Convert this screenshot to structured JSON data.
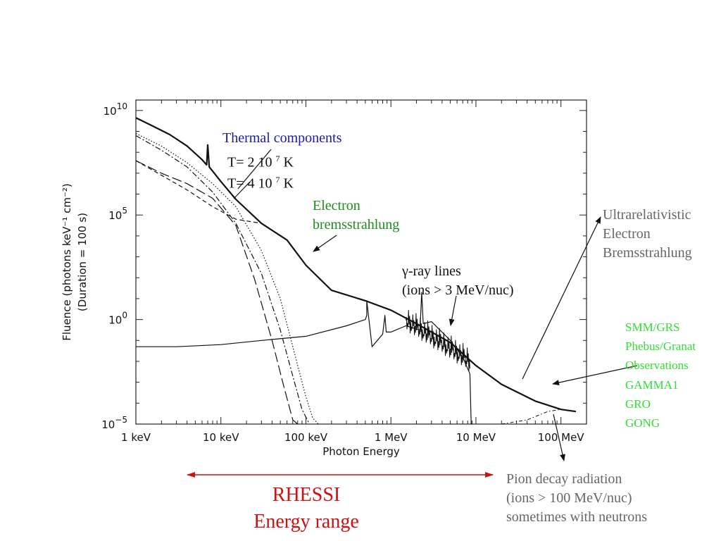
{
  "colors": {
    "thermal_title": "#1a1aa6",
    "electron": "#1f8a1f",
    "gray_text": "#666666",
    "green_obs": "#33dd33",
    "rhessi": "#cc1111",
    "ink": "#111111"
  },
  "chart_data": {
    "type": "line",
    "xlabel": "Photon Energy",
    "ylabel_line1": "Fluence (photons keV⁻¹ cm⁻²)",
    "ylabel_line2": "(Duration = 100 s)",
    "x_scale": "log",
    "y_scale": "log",
    "xlim_keV": [
      1,
      200000
    ],
    "ylim_exp": [
      -5,
      10.5
    ],
    "x_ticks": [
      {
        "value": 1,
        "label": "1 keV"
      },
      {
        "value": 10,
        "label": "10 keV"
      },
      {
        "value": 100,
        "label": "100 keV"
      },
      {
        "value": 1000,
        "label": "1 MeV"
      },
      {
        "value": 10000,
        "label": "10 MeV"
      },
      {
        "value": 100000,
        "label": "100 MeV"
      }
    ],
    "y_ticks": [
      {
        "value": 10,
        "base": "10",
        "exp": "10"
      },
      {
        "value": 5,
        "base": "10",
        "exp": "5"
      },
      {
        "value": 0,
        "base": "10",
        "exp": "0"
      },
      {
        "value": -5,
        "base": "10",
        "exp": "−5"
      }
    ],
    "series": [
      {
        "style": "solid-bold",
        "x": [
          1,
          1.5,
          2.5,
          4,
          6,
          6.8,
          7,
          7.3,
          8,
          10,
          15,
          30,
          60,
          100,
          200,
          500,
          1000,
          2000,
          5000,
          10000,
          20000,
          50000,
          100000,
          150000
        ],
        "y_exp": [
          9.65,
          9.3,
          8.85,
          8.3,
          7.65,
          7.4,
          8.35,
          7.3,
          7.1,
          6.6,
          5.75,
          4.6,
          3.8,
          2.6,
          1.4,
          0.9,
          0.45,
          -0.2,
          -1.1,
          -2.2,
          -3.1,
          -3.9,
          -4.3,
          -4.4
        ]
      },
      {
        "style": "dotted",
        "x": [
          1,
          2,
          4,
          8,
          15,
          30,
          50,
          80,
          100,
          120,
          140
        ],
        "y_exp": [
          8.9,
          8.3,
          7.5,
          6.5,
          5.4,
          3.3,
          1.0,
          -2.2,
          -3.7,
          -4.7,
          -5.5
        ]
      },
      {
        "style": "dash-dot",
        "x": [
          1,
          2,
          4,
          8,
          15,
          30,
          50,
          70,
          90,
          110
        ],
        "y_exp": [
          8.8,
          8.1,
          7.3,
          6.1,
          4.6,
          2.2,
          -0.5,
          -2.7,
          -4.3,
          -5.5
        ]
      },
      {
        "style": "long-dash",
        "x": [
          1,
          2,
          4,
          8,
          15,
          25,
          40,
          55,
          70,
          80
        ],
        "y_exp": [
          7.6,
          7.0,
          6.5,
          5.8,
          4.5,
          1.9,
          -1.0,
          -3.2,
          -4.8,
          -5.5
        ]
      },
      {
        "style": "dashed",
        "x": [
          1,
          2,
          4,
          8,
          15,
          30
        ],
        "y_exp": [
          7.6,
          6.9,
          6.2,
          5.4,
          4.8,
          4.6
        ]
      },
      {
        "style": "solid-thin",
        "x": [
          1,
          3,
          10,
          30,
          100,
          300,
          500,
          520,
          520,
          600,
          800,
          850,
          880,
          1000,
          1500,
          2200,
          2300,
          2400,
          3000,
          5000,
          7000,
          8500,
          8800,
          9000
        ],
        "y_exp": [
          -1.3,
          -1.3,
          -1.2,
          -1.0,
          -0.8,
          -0.3,
          0,
          0.2,
          0.9,
          -1.3,
          -0.7,
          0.2,
          -0.6,
          -0.6,
          -0.3,
          -0.5,
          1.3,
          -0.2,
          -0.1,
          -1.0,
          -1.8,
          -2.6,
          -5.5,
          -5.5
        ]
      },
      {
        "style": "dash-dot-small",
        "x": [
          20000,
          40000,
          70000,
          100000,
          150000
        ],
        "y_exp": [
          -5.5,
          -4.8,
          -4.4,
          -4.3,
          -4.4
        ]
      }
    ]
  },
  "annotations": {
    "thermal_title": "Thermal components",
    "t1_prefix": "T= 2 10 ",
    "t1_exp": "7",
    "t1_suffix": " K",
    "t2_prefix": "T= 4 10 ",
    "t2_exp": "7",
    "t2_suffix": " K",
    "electron_line1": "Electron",
    "electron_line2": "bremsstrahlung",
    "gamma_line1": "γ-ray lines",
    "gamma_line2": "(ions > 3 MeV/nuc)",
    "ultra_line1": "Ultrarelativistic",
    "ultra_line2": "Electron",
    "ultra_line3": "Bremsstrahlung",
    "obs": [
      "SMM/GRS",
      "Phebus/Granat",
      "Observations",
      "GAMMA1",
      "GRO",
      "GONG"
    ],
    "pion_line1": "Pion decay radiation",
    "pion_line2": "(ions > 100 MeV/nuc)",
    "pion_line3": "sometimes with neutrons",
    "rhessi_line1": "RHESSI",
    "rhessi_line2": "Energy range"
  }
}
